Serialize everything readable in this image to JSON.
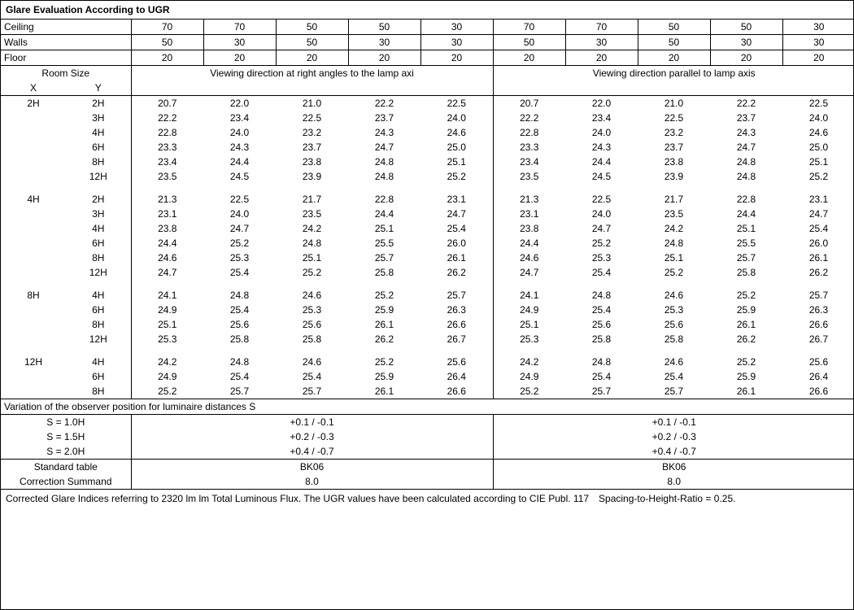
{
  "title": "Glare Evaluation According to UGR",
  "header_rows": [
    {
      "label": "Ceiling",
      "vals": [
        "70",
        "70",
        "50",
        "50",
        "30",
        "70",
        "70",
        "50",
        "50",
        "30"
      ]
    },
    {
      "label": "Walls",
      "vals": [
        "50",
        "30",
        "50",
        "30",
        "30",
        "50",
        "30",
        "50",
        "30",
        "30"
      ]
    },
    {
      "label": "Floor",
      "vals": [
        "20",
        "20",
        "20",
        "20",
        "20",
        "20",
        "20",
        "20",
        "20",
        "20"
      ]
    }
  ],
  "room_size_label": "Room Size",
  "x_label": "X",
  "y_label": "Y",
  "direction_left": "Viewing direction at right angles to the lamp axi",
  "direction_right": "Viewing direction parallel to lamp axis",
  "groups": [
    {
      "x": "2H",
      "rows": [
        {
          "y": "2H",
          "l": [
            "20.7",
            "22.0",
            "21.0",
            "22.2",
            "22.5"
          ],
          "r": [
            "20.7",
            "22.0",
            "21.0",
            "22.2",
            "22.5"
          ]
        },
        {
          "y": "3H",
          "l": [
            "22.2",
            "23.4",
            "22.5",
            "23.7",
            "24.0"
          ],
          "r": [
            "22.2",
            "23.4",
            "22.5",
            "23.7",
            "24.0"
          ]
        },
        {
          "y": "4H",
          "l": [
            "22.8",
            "24.0",
            "23.2",
            "24.3",
            "24.6"
          ],
          "r": [
            "22.8",
            "24.0",
            "23.2",
            "24.3",
            "24.6"
          ]
        },
        {
          "y": "6H",
          "l": [
            "23.3",
            "24.3",
            "23.7",
            "24.7",
            "25.0"
          ],
          "r": [
            "23.3",
            "24.3",
            "23.7",
            "24.7",
            "25.0"
          ]
        },
        {
          "y": "8H",
          "l": [
            "23.4",
            "24.4",
            "23.8",
            "24.8",
            "25.1"
          ],
          "r": [
            "23.4",
            "24.4",
            "23.8",
            "24.8",
            "25.1"
          ]
        },
        {
          "y": "12H",
          "l": [
            "23.5",
            "24.5",
            "23.9",
            "24.8",
            "25.2"
          ],
          "r": [
            "23.5",
            "24.5",
            "23.9",
            "24.8",
            "25.2"
          ]
        }
      ]
    },
    {
      "x": "4H",
      "rows": [
        {
          "y": "2H",
          "l": [
            "21.3",
            "22.5",
            "21.7",
            "22.8",
            "23.1"
          ],
          "r": [
            "21.3",
            "22.5",
            "21.7",
            "22.8",
            "23.1"
          ]
        },
        {
          "y": "3H",
          "l": [
            "23.1",
            "24.0",
            "23.5",
            "24.4",
            "24.7"
          ],
          "r": [
            "23.1",
            "24.0",
            "23.5",
            "24.4",
            "24.7"
          ]
        },
        {
          "y": "4H",
          "l": [
            "23.8",
            "24.7",
            "24.2",
            "25.1",
            "25.4"
          ],
          "r": [
            "23.8",
            "24.7",
            "24.2",
            "25.1",
            "25.4"
          ]
        },
        {
          "y": "6H",
          "l": [
            "24.4",
            "25.2",
            "24.8",
            "25.5",
            "26.0"
          ],
          "r": [
            "24.4",
            "25.2",
            "24.8",
            "25.5",
            "26.0"
          ]
        },
        {
          "y": "8H",
          "l": [
            "24.6",
            "25.3",
            "25.1",
            "25.7",
            "26.1"
          ],
          "r": [
            "24.6",
            "25.3",
            "25.1",
            "25.7",
            "26.1"
          ]
        },
        {
          "y": "12H",
          "l": [
            "24.7",
            "25.4",
            "25.2",
            "25.8",
            "26.2"
          ],
          "r": [
            "24.7",
            "25.4",
            "25.2",
            "25.8",
            "26.2"
          ]
        }
      ]
    },
    {
      "x": "8H",
      "rows": [
        {
          "y": "4H",
          "l": [
            "24.1",
            "24.8",
            "24.6",
            "25.2",
            "25.7"
          ],
          "r": [
            "24.1",
            "24.8",
            "24.6",
            "25.2",
            "25.7"
          ]
        },
        {
          "y": "6H",
          "l": [
            "24.9",
            "25.4",
            "25.3",
            "25.9",
            "26.3"
          ],
          "r": [
            "24.9",
            "25.4",
            "25.3",
            "25.9",
            "26.3"
          ]
        },
        {
          "y": "8H",
          "l": [
            "25.1",
            "25.6",
            "25.6",
            "26.1",
            "26.6"
          ],
          "r": [
            "25.1",
            "25.6",
            "25.6",
            "26.1",
            "26.6"
          ]
        },
        {
          "y": "12H",
          "l": [
            "25.3",
            "25.8",
            "25.8",
            "26.2",
            "26.7"
          ],
          "r": [
            "25.3",
            "25.8",
            "25.8",
            "26.2",
            "26.7"
          ]
        }
      ]
    },
    {
      "x": "12H",
      "rows": [
        {
          "y": "4H",
          "l": [
            "24.2",
            "24.8",
            "24.6",
            "25.2",
            "25.6"
          ],
          "r": [
            "24.2",
            "24.8",
            "24.6",
            "25.2",
            "25.6"
          ]
        },
        {
          "y": "6H",
          "l": [
            "24.9",
            "25.4",
            "25.4",
            "25.9",
            "26.4"
          ],
          "r": [
            "24.9",
            "25.4",
            "25.4",
            "25.9",
            "26.4"
          ]
        },
        {
          "y": "8H",
          "l": [
            "25.2",
            "25.7",
            "25.7",
            "26.1",
            "26.6"
          ],
          "r": [
            "25.2",
            "25.7",
            "25.7",
            "26.1",
            "26.6"
          ]
        }
      ]
    }
  ],
  "variation_title": "Variation of the observer position for luminaire distances S",
  "variation_rows": [
    {
      "s": "S = 1.0H",
      "l": "+0.1 / -0.1",
      "r": "+0.1 / -0.1"
    },
    {
      "s": "S = 1.5H",
      "l": "+0.2 / -0.3",
      "r": "+0.2 / -0.3"
    },
    {
      "s": "S = 2.0H",
      "l": "+0.4 / -0.7",
      "r": "+0.4 / -0.7"
    }
  ],
  "standard_table_label": "Standard table",
  "standard_table_left": "BK06",
  "standard_table_right": "BK06",
  "correction_label": "Correction Summand",
  "correction_left": "8.0",
  "correction_right": "8.0",
  "footnote": "Corrected Glare Indices referring to 2320 lm lm Total Luminous Flux. The UGR values have been calculated according to CIE Publ. 117 Spacing-to-Height-Ratio = 0.25."
}
